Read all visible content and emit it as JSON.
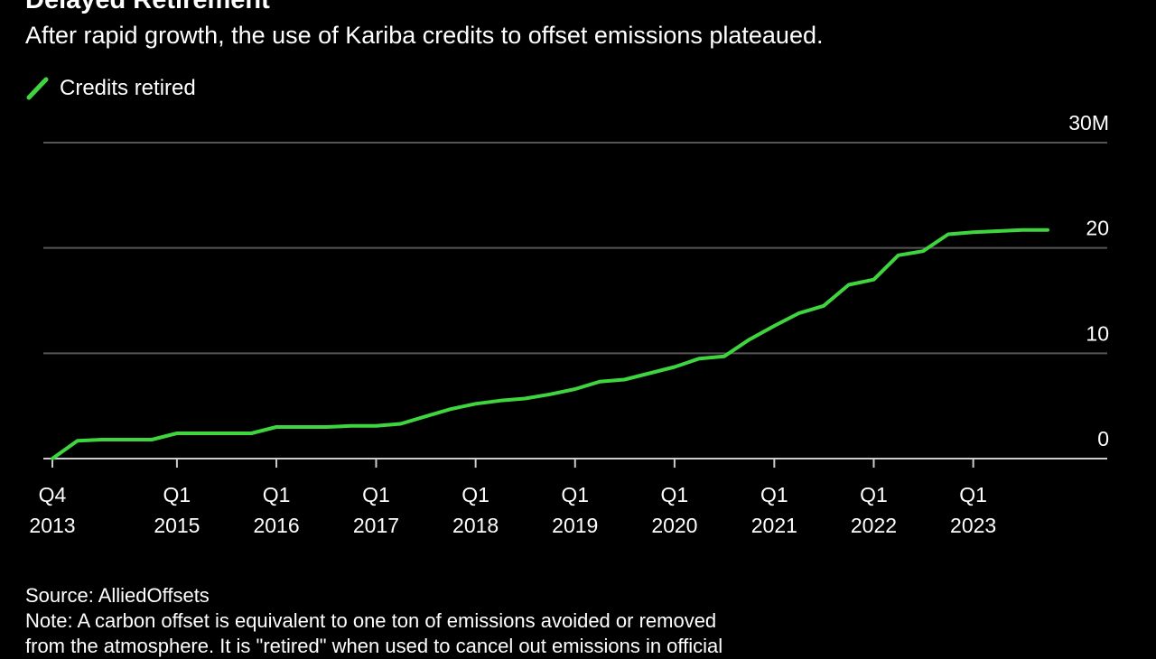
{
  "title": "Delayed Retirement",
  "subtitle": "After rapid growth, the use of Kariba credits to offset emissions plateaued.",
  "source": "Source: AlliedOffsets",
  "note_lines": [
    "Note: A carbon offset is equivalent to one ton of emissions avoided or removed",
    "from the atmosphere. It is \"retired\" when used to cancel out emissions in official"
  ],
  "colors": {
    "background": "#000000",
    "line": "#3fd53f",
    "grid": "#555555",
    "text": "#ffffff"
  },
  "chart_data": {
    "type": "line",
    "title": "Delayed Retirement",
    "subtitle": "After rapid growth, the use of Kariba credits to offset emissions plateaued.",
    "legend": "top-left",
    "grid": true,
    "y_unit": "M",
    "ylim": [
      0,
      30
    ],
    "yticks": [
      {
        "value": 0,
        "label": "0"
      },
      {
        "value": 10,
        "label": "10"
      },
      {
        "value": 20,
        "label": "20"
      },
      {
        "value": 30,
        "label": "30M"
      }
    ],
    "xlim": [
      "2013-10-01",
      "2023-11-01"
    ],
    "xticks": [
      {
        "date": "2013-10-01",
        "label": [
          "Q4",
          "2013"
        ]
      },
      {
        "date": "2015-01-01",
        "label": [
          "Q1",
          "2015"
        ]
      },
      {
        "date": "2016-01-01",
        "label": [
          "Q1",
          "2016"
        ]
      },
      {
        "date": "2017-01-01",
        "label": [
          "Q1",
          "2017"
        ]
      },
      {
        "date": "2018-01-01",
        "label": [
          "Q1",
          "2018"
        ]
      },
      {
        "date": "2019-01-01",
        "label": [
          "Q1",
          "2019"
        ]
      },
      {
        "date": "2020-01-01",
        "label": [
          "Q1",
          "2020"
        ]
      },
      {
        "date": "2021-01-01",
        "label": [
          "Q1",
          "2021"
        ]
      },
      {
        "date": "2022-01-01",
        "label": [
          "Q1",
          "2022"
        ]
      },
      {
        "date": "2023-01-01",
        "label": [
          "Q1",
          "2023"
        ]
      }
    ],
    "series": [
      {
        "name": "Credits retired",
        "points": [
          [
            "2013-10-01",
            0.0
          ],
          [
            "2014-01-01",
            1.7
          ],
          [
            "2014-04-01",
            1.8
          ],
          [
            "2014-07-01",
            1.8
          ],
          [
            "2014-10-01",
            1.8
          ],
          [
            "2015-01-01",
            2.4
          ],
          [
            "2015-04-01",
            2.4
          ],
          [
            "2015-07-01",
            2.4
          ],
          [
            "2015-10-01",
            2.4
          ],
          [
            "2016-01-01",
            3.0
          ],
          [
            "2016-04-01",
            3.0
          ],
          [
            "2016-07-01",
            3.0
          ],
          [
            "2016-10-01",
            3.1
          ],
          [
            "2017-01-01",
            3.1
          ],
          [
            "2017-04-01",
            3.3
          ],
          [
            "2017-07-01",
            4.0
          ],
          [
            "2017-10-01",
            4.7
          ],
          [
            "2018-01-01",
            5.2
          ],
          [
            "2018-04-01",
            5.5
          ],
          [
            "2018-07-01",
            5.7
          ],
          [
            "2018-10-01",
            6.1
          ],
          [
            "2019-01-01",
            6.6
          ],
          [
            "2019-04-01",
            7.3
          ],
          [
            "2019-07-01",
            7.5
          ],
          [
            "2019-10-01",
            8.1
          ],
          [
            "2020-01-01",
            8.7
          ],
          [
            "2020-04-01",
            9.5
          ],
          [
            "2020-07-01",
            9.7
          ],
          [
            "2020-10-01",
            11.3
          ],
          [
            "2021-01-01",
            12.6
          ],
          [
            "2021-04-01",
            13.8
          ],
          [
            "2021-07-01",
            14.5
          ],
          [
            "2021-10-01",
            16.5
          ],
          [
            "2022-01-01",
            17.0
          ],
          [
            "2022-04-01",
            19.3
          ],
          [
            "2022-07-01",
            19.7
          ],
          [
            "2022-10-01",
            21.3
          ],
          [
            "2023-01-01",
            21.5
          ],
          [
            "2023-04-01",
            21.6
          ],
          [
            "2023-07-01",
            21.7
          ],
          [
            "2023-10-01",
            21.7
          ]
        ]
      }
    ]
  }
}
